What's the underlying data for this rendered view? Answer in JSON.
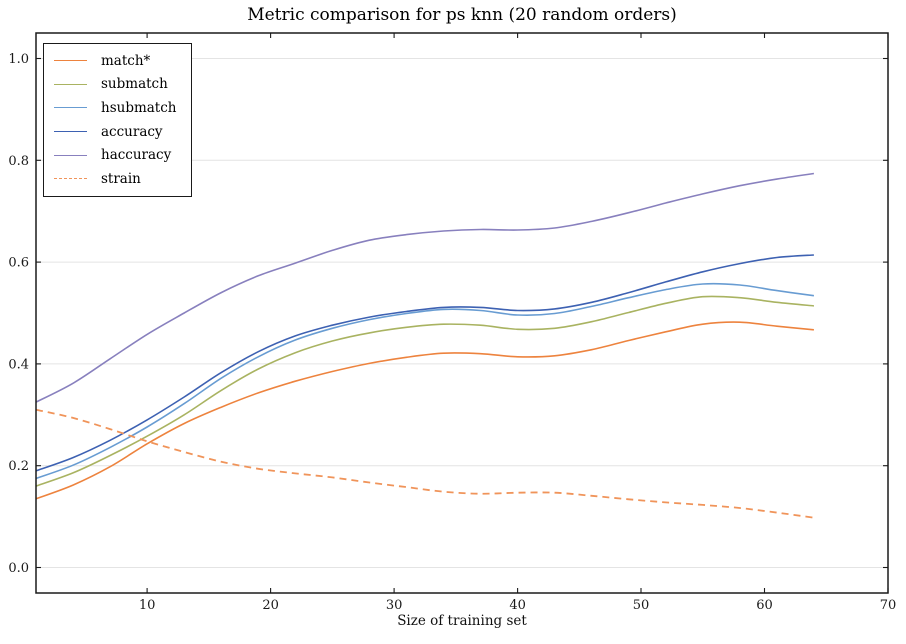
{
  "style": {
    "background": "#ffffff",
    "grid_color": "#e4e4e4",
    "spine_color": "#1a1a1a",
    "tick_label_color": "#1a1a1a"
  },
  "axis": {
    "x_tick_labels": [
      "10",
      "20",
      "30",
      "40",
      "50",
      "60",
      "70"
    ],
    "x_tick_values": [
      10,
      20,
      30,
      40,
      50,
      60,
      70
    ],
    "y_tick_labels": [
      "0.0",
      "0.2",
      "0.4",
      "0.6",
      "0.8",
      "1.0"
    ],
    "y_tick_values": [
      0,
      0.2,
      0.4,
      0.6,
      0.8,
      1.0
    ]
  },
  "chart_data": {
    "type": "line",
    "title": "Metric comparison for ps knn (20 random orders)",
    "xlabel": "Size of training set",
    "ylabel": "",
    "xlim": [
      1,
      70
    ],
    "ylim": [
      -0.05,
      1.05
    ],
    "grid": "horizontal gridlines only, light gray",
    "legend_position": "upper left",
    "x": [
      1,
      4,
      7,
      10,
      13,
      16,
      19,
      22,
      25,
      28,
      31,
      34,
      37,
      40,
      43,
      46,
      49,
      52,
      55,
      58,
      61,
      64
    ],
    "series": [
      {
        "name": "match*",
        "color": "#ED833E",
        "style": "solid",
        "values": [
          0.135,
          0.162,
          0.198,
          0.243,
          0.283,
          0.315,
          0.343,
          0.366,
          0.385,
          0.401,
          0.413,
          0.421,
          0.42,
          0.414,
          0.416,
          0.428,
          0.446,
          0.463,
          0.478,
          0.482,
          0.474,
          0.467
        ]
      },
      {
        "name": "submatch",
        "color": "#A9B361",
        "style": "solid",
        "values": [
          0.16,
          0.186,
          0.22,
          0.258,
          0.3,
          0.348,
          0.39,
          0.422,
          0.445,
          0.461,
          0.472,
          0.478,
          0.476,
          0.468,
          0.47,
          0.483,
          0.501,
          0.519,
          0.532,
          0.53,
          0.521,
          0.514
        ]
      },
      {
        "name": "hsubmatch",
        "color": "#689CD2",
        "style": "solid",
        "values": [
          0.175,
          0.201,
          0.236,
          0.276,
          0.322,
          0.372,
          0.414,
          0.447,
          0.47,
          0.487,
          0.499,
          0.507,
          0.505,
          0.496,
          0.499,
          0.513,
          0.53,
          0.546,
          0.557,
          0.555,
          0.544,
          0.534
        ]
      },
      {
        "name": "accuracy",
        "color": "#3D61B2",
        "style": "solid",
        "values": [
          0.19,
          0.216,
          0.25,
          0.29,
          0.335,
          0.383,
          0.424,
          0.455,
          0.476,
          0.492,
          0.503,
          0.511,
          0.511,
          0.505,
          0.508,
          0.521,
          0.54,
          0.561,
          0.581,
          0.597,
          0.609,
          0.614
        ]
      },
      {
        "name": "haccuracy",
        "color": "#8880BE",
        "style": "solid",
        "values": [
          0.325,
          0.362,
          0.41,
          0.458,
          0.5,
          0.54,
          0.573,
          0.598,
          0.623,
          0.643,
          0.654,
          0.661,
          0.664,
          0.663,
          0.667,
          0.68,
          0.697,
          0.716,
          0.734,
          0.75,
          0.763,
          0.774
        ]
      },
      {
        "name": "strain",
        "color": "#F0945A",
        "style": "dashed",
        "values": [
          0.31,
          0.294,
          0.272,
          0.248,
          0.227,
          0.208,
          0.194,
          0.185,
          0.177,
          0.167,
          0.158,
          0.149,
          0.145,
          0.147,
          0.147,
          0.141,
          0.134,
          0.128,
          0.123,
          0.117,
          0.108,
          0.098
        ]
      }
    ]
  }
}
